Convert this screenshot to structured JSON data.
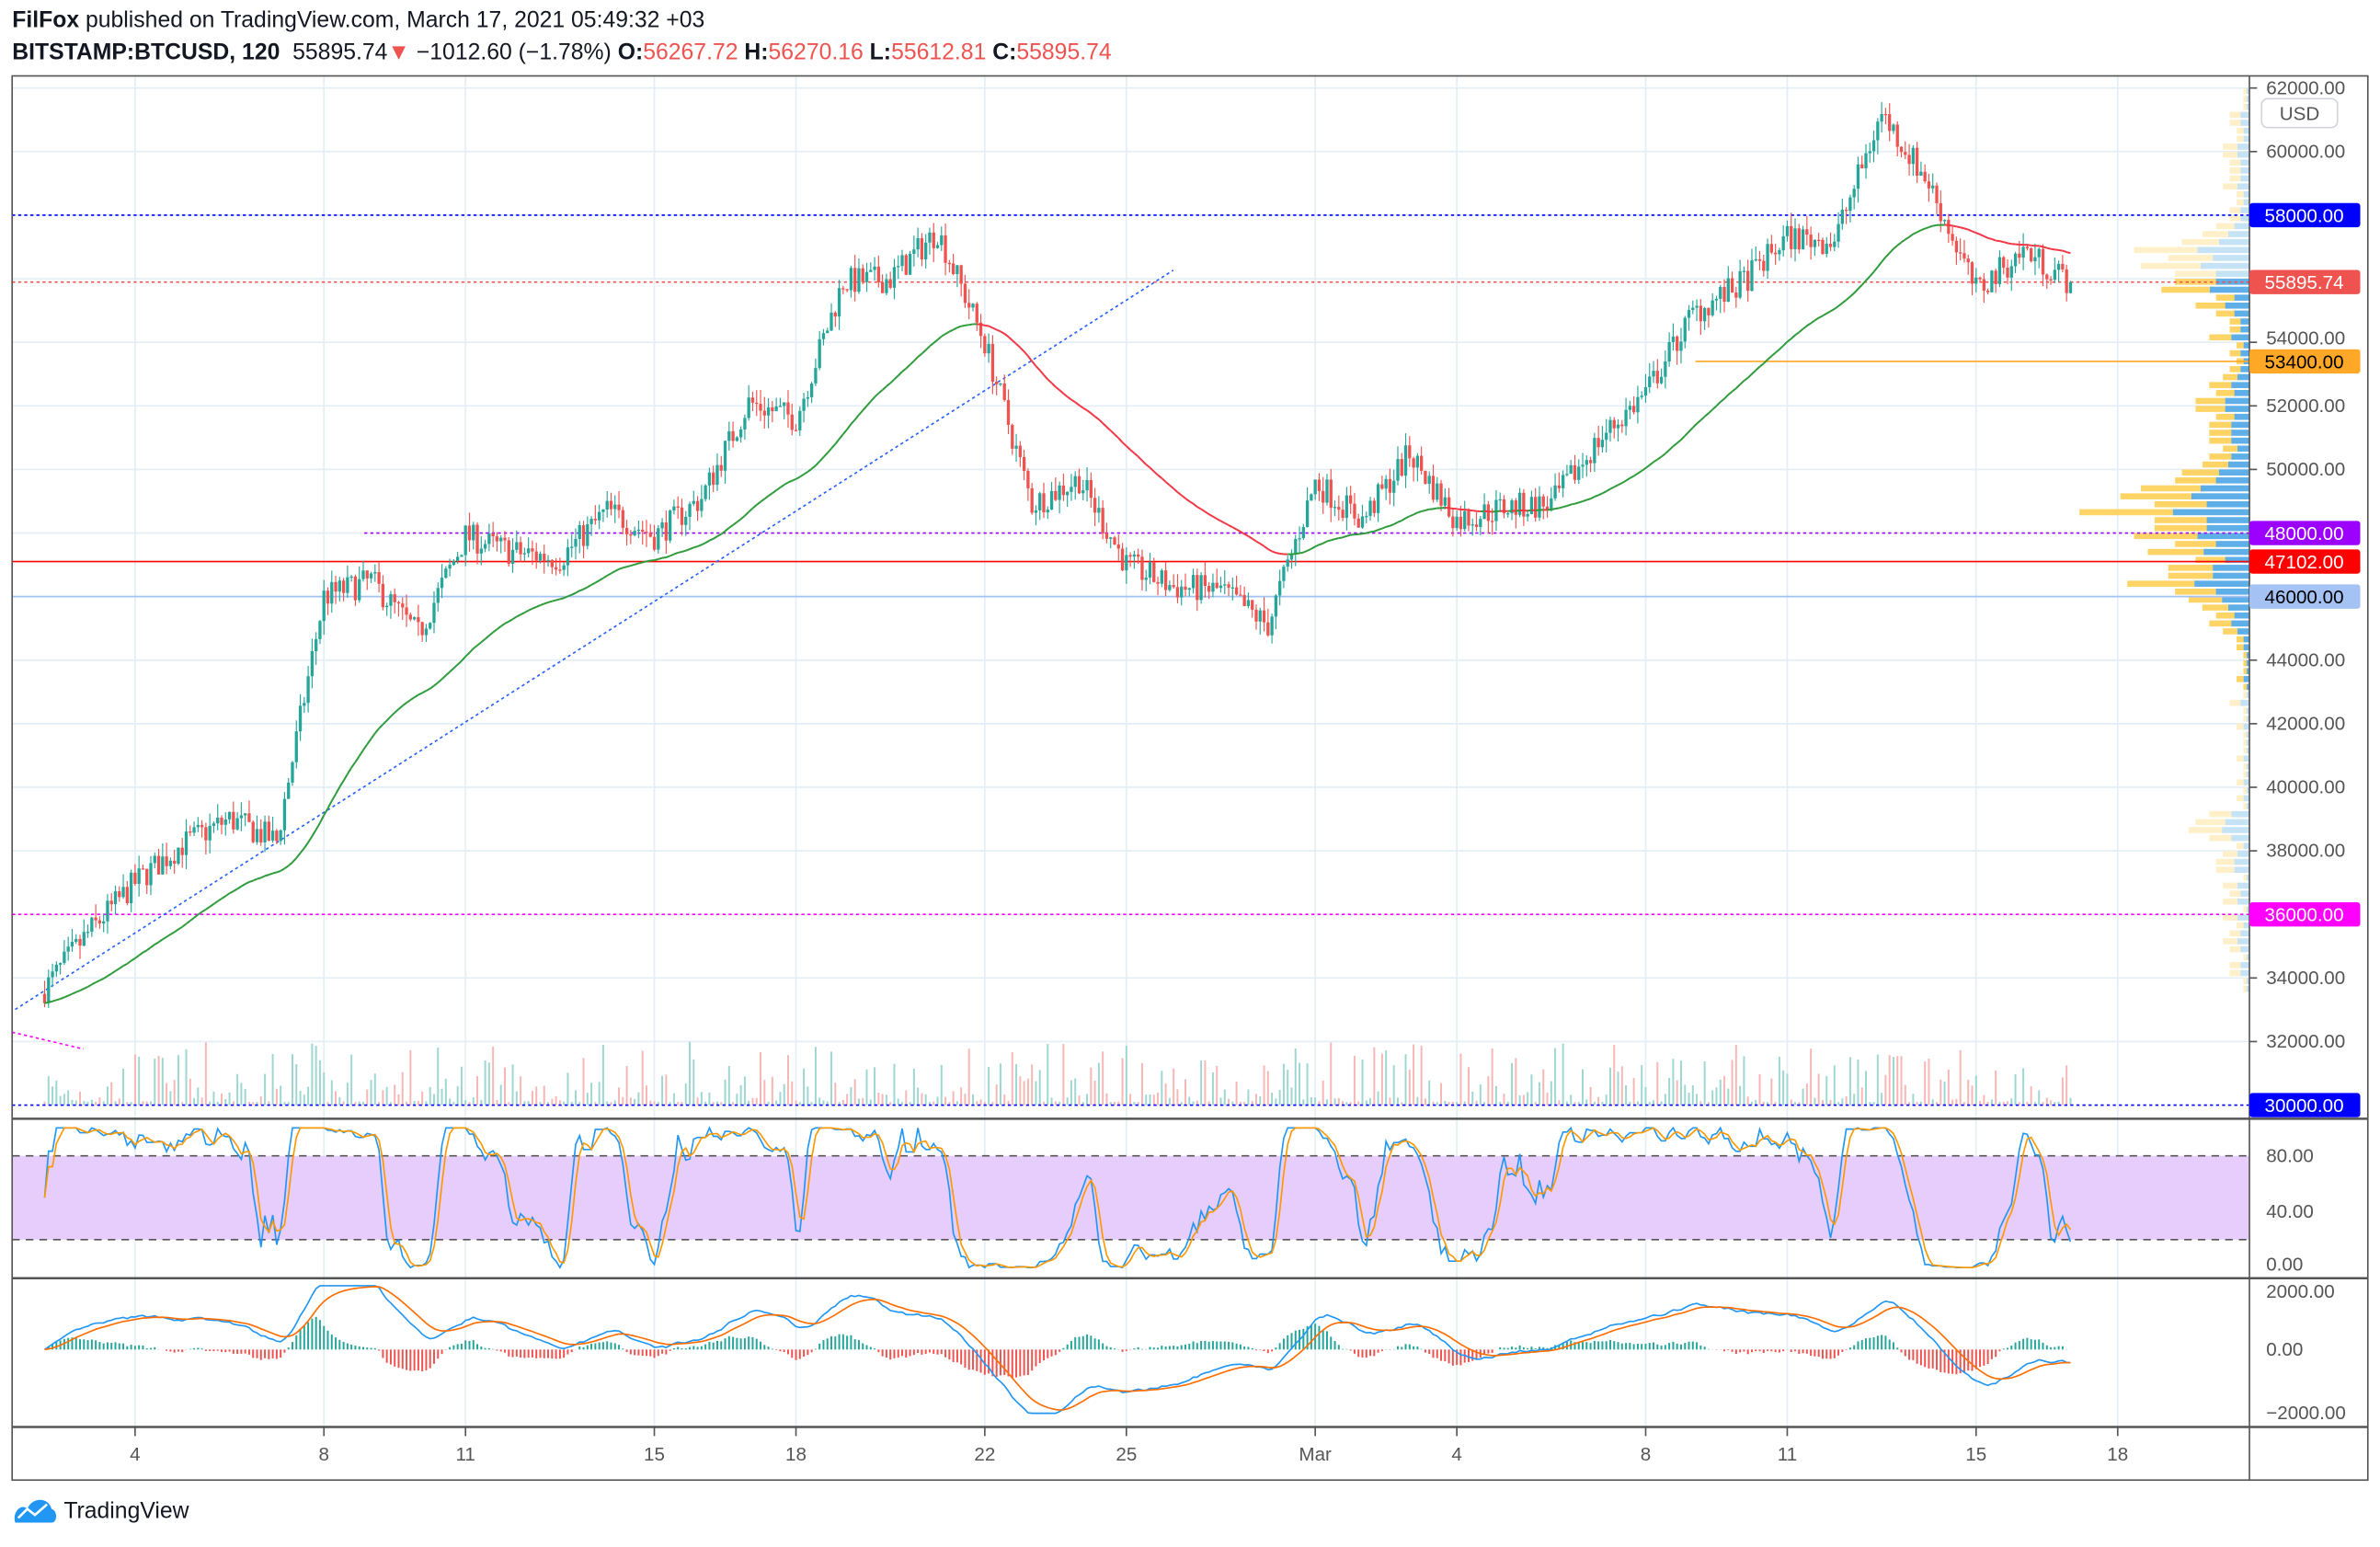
{
  "header": {
    "author": "FilFox",
    "published": "published on TradingView.com, March 17, 2021 05:49:32 +03",
    "symbol": "BITSTAMP:BTCUSD, 120",
    "last": "55895.74",
    "arrow": "▼",
    "change": "−1012.60 (−1.78%)",
    "o_label": "O:",
    "o": "56267.72",
    "h_label": "H:",
    "h": "56270.16",
    "l_label": "L:",
    "l": "55612.81",
    "c_label": "C:",
    "c": "55895.74"
  },
  "currency": "USD",
  "footer": {
    "brand": "TradingView"
  },
  "colors": {
    "up": "#26a69a",
    "down": "#ef5350",
    "ma_up": "#2e9b3b",
    "ma_down": "#f23645"
  },
  "chart_data": {
    "type": "candlestick",
    "interval": "120",
    "price_axis": {
      "ticks": [
        62000,
        60000,
        58000,
        54000,
        52000,
        50000,
        44000,
        42000,
        40000,
        38000,
        34000,
        32000
      ],
      "tick_labels": [
        "62000.00",
        "60000.00",
        "58000.00",
        "54000.00",
        "52000.00",
        "50000.00",
        "44000.00",
        "42000.00",
        "40000.00",
        "38000.00",
        "34000.00",
        "32000.00"
      ],
      "range": [
        30000,
        62000
      ]
    },
    "price_lines": [
      {
        "value": 58000,
        "label": "58000.00",
        "color": "#0000ff",
        "style": "dotted"
      },
      {
        "value": 55895.74,
        "label": "55895.74",
        "color": "#ef5350",
        "style": "dotted"
      },
      {
        "value": 53400,
        "label": "53400.00",
        "color": "#ffa726",
        "style": "solid"
      },
      {
        "value": 48000,
        "label": "48000.00",
        "color": "#9c00ff",
        "style": "dotted"
      },
      {
        "value": 47102,
        "label": "47102.00",
        "color": "#ff0000",
        "style": "solid"
      },
      {
        "value": 46000,
        "label": "46000.00",
        "color": "#a4c2f4",
        "style": "solid"
      },
      {
        "value": 36000,
        "label": "36000.00",
        "color": "#ff00ff",
        "style": "dotted"
      },
      {
        "value": 30000,
        "label": "30000.00",
        "color": "#0000ff",
        "style": "dotted"
      }
    ],
    "time_labels": [
      "4",
      "8",
      "11",
      "15",
      "18",
      "22",
      "25",
      "Mar",
      "4",
      "8",
      "11",
      "15",
      "18"
    ],
    "time_label_days": [
      3,
      7,
      10,
      14,
      17,
      21,
      24,
      28,
      31,
      35,
      38,
      42,
      45
    ],
    "daily_closes_from_feb2": [
      33500,
      35400,
      37000,
      38200,
      39000,
      38300,
      46000,
      46500,
      44800,
      47900,
      47400,
      47200,
      48700,
      47900,
      49100,
      52100,
      51600,
      55900,
      56000,
      57500,
      54000,
      48900,
      49700,
      47000,
      46300,
      46200,
      45100,
      49600,
      48400,
      50500,
      48400,
      48800,
      48900,
      50900,
      52400,
      54900,
      55800,
      57300,
      57200,
      61200,
      59000,
      55600,
      56900,
      55896
    ],
    "stoch_rsi": {
      "ticks": [
        80,
        40,
        0
      ],
      "tick_labels": [
        "80.00",
        "40.00",
        "0.00"
      ],
      "bands": [
        80,
        20
      ]
    },
    "macd": {
      "ticks": [
        2000,
        0,
        -2000
      ],
      "tick_labels": [
        "2000.00",
        "0.00",
        "−2000.00"
      ]
    }
  }
}
